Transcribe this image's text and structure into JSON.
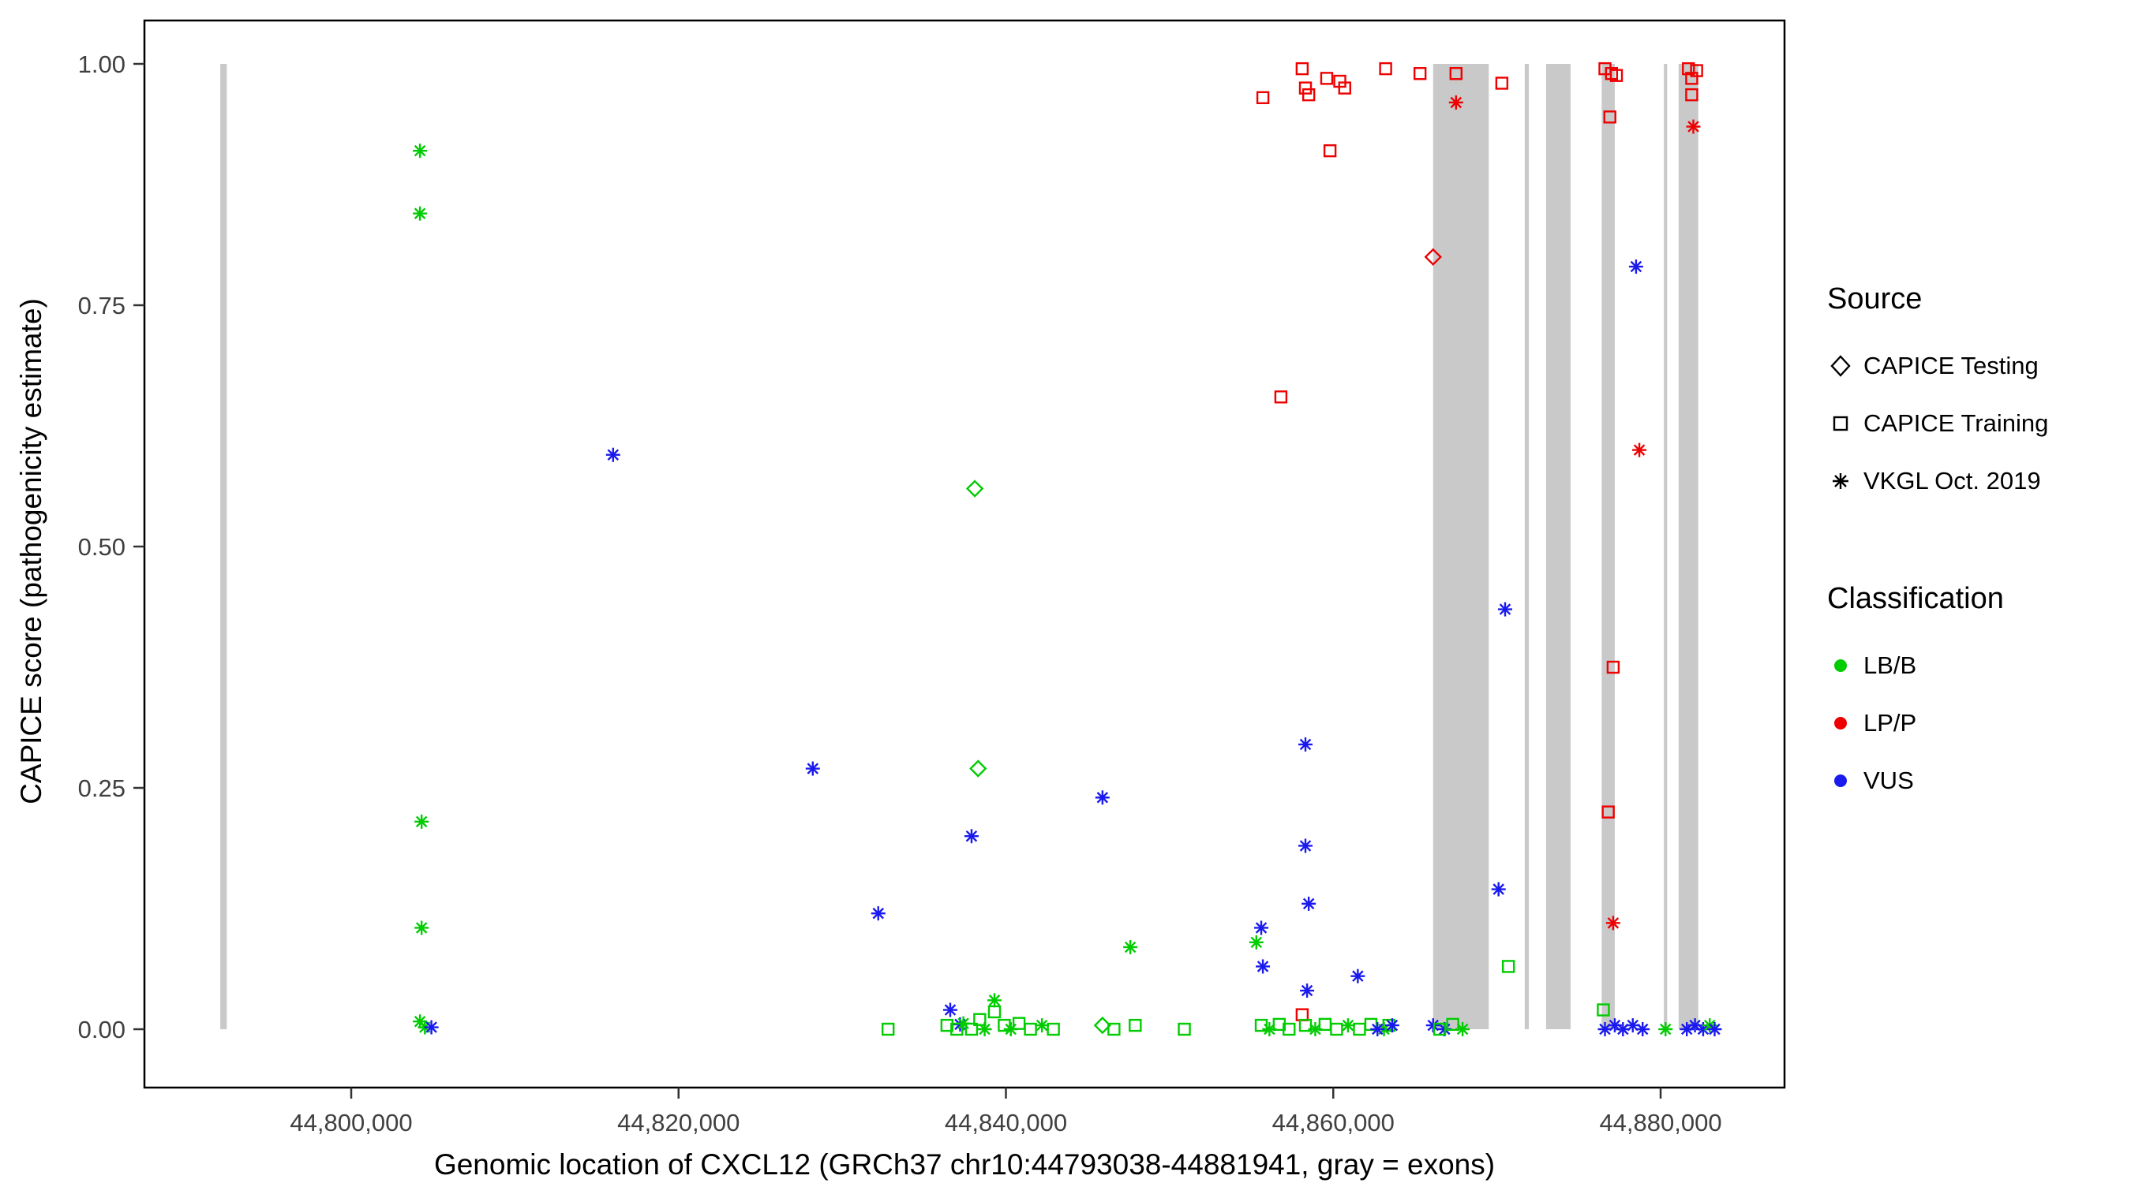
{
  "chart_data": {
    "type": "scatter",
    "title": "",
    "xlabel": "Genomic location of CXCL12 (GRCh37 chr10:44793038-44881941, gray = exons)",
    "ylabel": "CAPICE score (pathogenicity estimate)",
    "x_range": [
      44787366,
      44887570
    ],
    "y_range": [
      0,
      1
    ],
    "grid": false,
    "legend_position": "right",
    "x_ticks": [
      {
        "v": 44800000,
        "label": "44,800,000"
      },
      {
        "v": 44820000,
        "label": "44,820,000"
      },
      {
        "v": 44840000,
        "label": "44,840,000"
      },
      {
        "v": 44860000,
        "label": "44,860,000"
      },
      {
        "v": 44880000,
        "label": "44,880,000"
      }
    ],
    "y_ticks": [
      {
        "v": 0.0,
        "label": "0.00"
      },
      {
        "v": 0.25,
        "label": "0.25"
      },
      {
        "v": 0.5,
        "label": "0.50"
      },
      {
        "v": 0.75,
        "label": "0.75"
      },
      {
        "v": 1.0,
        "label": "1.00"
      }
    ],
    "exon_color": "#c9c9c9",
    "exons": [
      [
        44792000,
        44792400
      ],
      [
        44866100,
        44869500
      ],
      [
        44871700,
        44871950
      ],
      [
        44873000,
        44874500
      ],
      [
        44876400,
        44877200
      ],
      [
        44880200,
        44880400
      ],
      [
        44881100,
        44882300
      ]
    ],
    "marker_map": {
      "d": "CAPICE Testing",
      "s": "CAPICE Training",
      "a": "VKGL Oct. 2019"
    },
    "color_map": {
      "LB": "#00cc00",
      "LP": "#ee0000",
      "VUS": "#1a1aee"
    },
    "points": [
      [
        44804200,
        0.91,
        "a",
        "LB"
      ],
      [
        44804200,
        0.845,
        "a",
        "LB"
      ],
      [
        44804300,
        0.215,
        "a",
        "LB"
      ],
      [
        44804300,
        0.105,
        "a",
        "LB"
      ],
      [
        44804200,
        0.008,
        "a",
        "LB"
      ],
      [
        44804500,
        0.002,
        "a",
        "LB"
      ],
      [
        44804900,
        0.002,
        "a",
        "VUS"
      ],
      [
        44816000,
        0.595,
        "a",
        "VUS"
      ],
      [
        44828200,
        0.27,
        "a",
        "VUS"
      ],
      [
        44832200,
        0.12,
        "a",
        "VUS"
      ],
      [
        44837900,
        0.2,
        "a",
        "VUS"
      ],
      [
        44836600,
        0.02,
        "a",
        "VUS"
      ],
      [
        44837200,
        0.005,
        "a",
        "VUS"
      ],
      [
        44845900,
        0.24,
        "a",
        "VUS"
      ],
      [
        44838100,
        0.56,
        "d",
        "LB"
      ],
      [
        44838300,
        0.27,
        "d",
        "LB"
      ],
      [
        44832800,
        0.0,
        "s",
        "LB"
      ],
      [
        44836400,
        0.004,
        "s",
        "LB"
      ],
      [
        44837000,
        0.0,
        "s",
        "LB"
      ],
      [
        44837400,
        0.006,
        "a",
        "LB"
      ],
      [
        44837900,
        0.0,
        "s",
        "LB"
      ],
      [
        44838400,
        0.01,
        "s",
        "LB"
      ],
      [
        44838700,
        0.0,
        "a",
        "LB"
      ],
      [
        44839300,
        0.03,
        "a",
        "LB"
      ],
      [
        44839300,
        0.018,
        "s",
        "LB"
      ],
      [
        44839900,
        0.004,
        "s",
        "LB"
      ],
      [
        44840300,
        0.0,
        "a",
        "LB"
      ],
      [
        44840800,
        0.006,
        "s",
        "LB"
      ],
      [
        44841500,
        0.0,
        "s",
        "LB"
      ],
      [
        44842200,
        0.004,
        "a",
        "LB"
      ],
      [
        44842900,
        0.0,
        "s",
        "LB"
      ],
      [
        44845900,
        0.004,
        "d",
        "LB"
      ],
      [
        44846600,
        0.0,
        "s",
        "LB"
      ],
      [
        44847600,
        0.085,
        "a",
        "LB"
      ],
      [
        44847900,
        0.004,
        "s",
        "LB"
      ],
      [
        44850900,
        0.0,
        "s",
        "LB"
      ],
      [
        44855300,
        0.09,
        "a",
        "LB"
      ],
      [
        44855600,
        0.004,
        "s",
        "LB"
      ],
      [
        44856100,
        0.0,
        "a",
        "LB"
      ],
      [
        44856700,
        0.005,
        "s",
        "LB"
      ],
      [
        44857300,
        0.0,
        "s",
        "LB"
      ],
      [
        44858100,
        0.015,
        "s",
        "LP"
      ],
      [
        44858300,
        0.004,
        "s",
        "LB"
      ],
      [
        44858900,
        0.0,
        "a",
        "LB"
      ],
      [
        44859500,
        0.005,
        "s",
        "LB"
      ],
      [
        44860200,
        0.0,
        "s",
        "LB"
      ],
      [
        44860900,
        0.004,
        "a",
        "LB"
      ],
      [
        44861600,
        0.0,
        "s",
        "LB"
      ],
      [
        44862300,
        0.005,
        "s",
        "LB"
      ],
      [
        44863100,
        0.0,
        "a",
        "LB"
      ],
      [
        44863400,
        0.004,
        "s",
        "LB"
      ],
      [
        44858400,
        0.04,
        "a",
        "VUS"
      ],
      [
        44861500,
        0.055,
        "a",
        "VUS"
      ],
      [
        44862700,
        0.0,
        "a",
        "VUS"
      ],
      [
        44863600,
        0.004,
        "a",
        "VUS"
      ],
      [
        44855600,
        0.105,
        "a",
        "VUS"
      ],
      [
        44855700,
        0.065,
        "a",
        "VUS"
      ],
      [
        44858300,
        0.295,
        "a",
        "VUS"
      ],
      [
        44858300,
        0.19,
        "a",
        "VUS"
      ],
      [
        44858500,
        0.13,
        "a",
        "VUS"
      ],
      [
        44855700,
        0.965,
        "s",
        "LP"
      ],
      [
        44856800,
        0.655,
        "s",
        "LP"
      ],
      [
        44858100,
        0.995,
        "s",
        "LP"
      ],
      [
        44858300,
        0.975,
        "s",
        "LP"
      ],
      [
        44858500,
        0.968,
        "s",
        "LP"
      ],
      [
        44859600,
        0.985,
        "s",
        "LP"
      ],
      [
        44859800,
        0.91,
        "s",
        "LP"
      ],
      [
        44860400,
        0.982,
        "s",
        "LP"
      ],
      [
        44860700,
        0.975,
        "s",
        "LP"
      ],
      [
        44863200,
        0.995,
        "s",
        "LP"
      ],
      [
        44865300,
        0.99,
        "s",
        "LP"
      ],
      [
        44867500,
        0.99,
        "s",
        "LP"
      ],
      [
        44870300,
        0.98,
        "s",
        "LP"
      ],
      [
        44866100,
        0.8,
        "d",
        "LP"
      ],
      [
        44867500,
        0.96,
        "a",
        "LP"
      ],
      [
        44866100,
        0.004,
        "a",
        "VUS"
      ],
      [
        44866800,
        0.0,
        "a",
        "VUS"
      ],
      [
        44866500,
        0.0,
        "s",
        "LB"
      ],
      [
        44867300,
        0.005,
        "s",
        "LB"
      ],
      [
        44867900,
        0.0,
        "a",
        "LB"
      ],
      [
        44870500,
        0.435,
        "a",
        "VUS"
      ],
      [
        44870100,
        0.145,
        "a",
        "VUS"
      ],
      [
        44870700,
        0.065,
        "s",
        "LB"
      ],
      [
        44876600,
        0.995,
        "s",
        "LP"
      ],
      [
        44877000,
        0.99,
        "s",
        "LP"
      ],
      [
        44877300,
        0.988,
        "s",
        "LP"
      ],
      [
        44876900,
        0.945,
        "s",
        "LP"
      ],
      [
        44877100,
        0.375,
        "s",
        "LP"
      ],
      [
        44876800,
        0.225,
        "s",
        "LP"
      ],
      [
        44877100,
        0.11,
        "a",
        "LP"
      ],
      [
        44878500,
        0.79,
        "a",
        "VUS"
      ],
      [
        44878700,
        0.6,
        "a",
        "LP"
      ],
      [
        44876500,
        0.02,
        "s",
        "LB"
      ],
      [
        44876600,
        0.0,
        "a",
        "VUS"
      ],
      [
        44877200,
        0.004,
        "a",
        "VUS"
      ],
      [
        44877700,
        0.0,
        "a",
        "VUS"
      ],
      [
        44878300,
        0.004,
        "a",
        "VUS"
      ],
      [
        44878900,
        0.0,
        "a",
        "VUS"
      ],
      [
        44880300,
        0.0,
        "a",
        "LB"
      ],
      [
        44881700,
        0.995,
        "s",
        "LP"
      ],
      [
        44882200,
        0.993,
        "s",
        "LP"
      ],
      [
        44881900,
        0.985,
        "s",
        "LP"
      ],
      [
        44881900,
        0.968,
        "s",
        "LP"
      ],
      [
        44882000,
        0.935,
        "a",
        "LP"
      ],
      [
        44881600,
        0.0,
        "a",
        "VUS"
      ],
      [
        44882100,
        0.004,
        "a",
        "VUS"
      ],
      [
        44882600,
        0.0,
        "a",
        "VUS"
      ],
      [
        44883000,
        0.004,
        "a",
        "LB"
      ],
      [
        44883300,
        0.0,
        "a",
        "VUS"
      ]
    ]
  },
  "legend": {
    "source_title": "Source",
    "source_items": [
      "CAPICE Testing",
      "CAPICE Training",
      "VKGL Oct. 2019"
    ],
    "classification_title": "Classification",
    "classification_items": [
      {
        "label": "LB/B",
        "color": "#00cc00"
      },
      {
        "label": "LP/P",
        "color": "#ee0000"
      },
      {
        "label": "VUS",
        "color": "#1a1aee"
      }
    ]
  }
}
